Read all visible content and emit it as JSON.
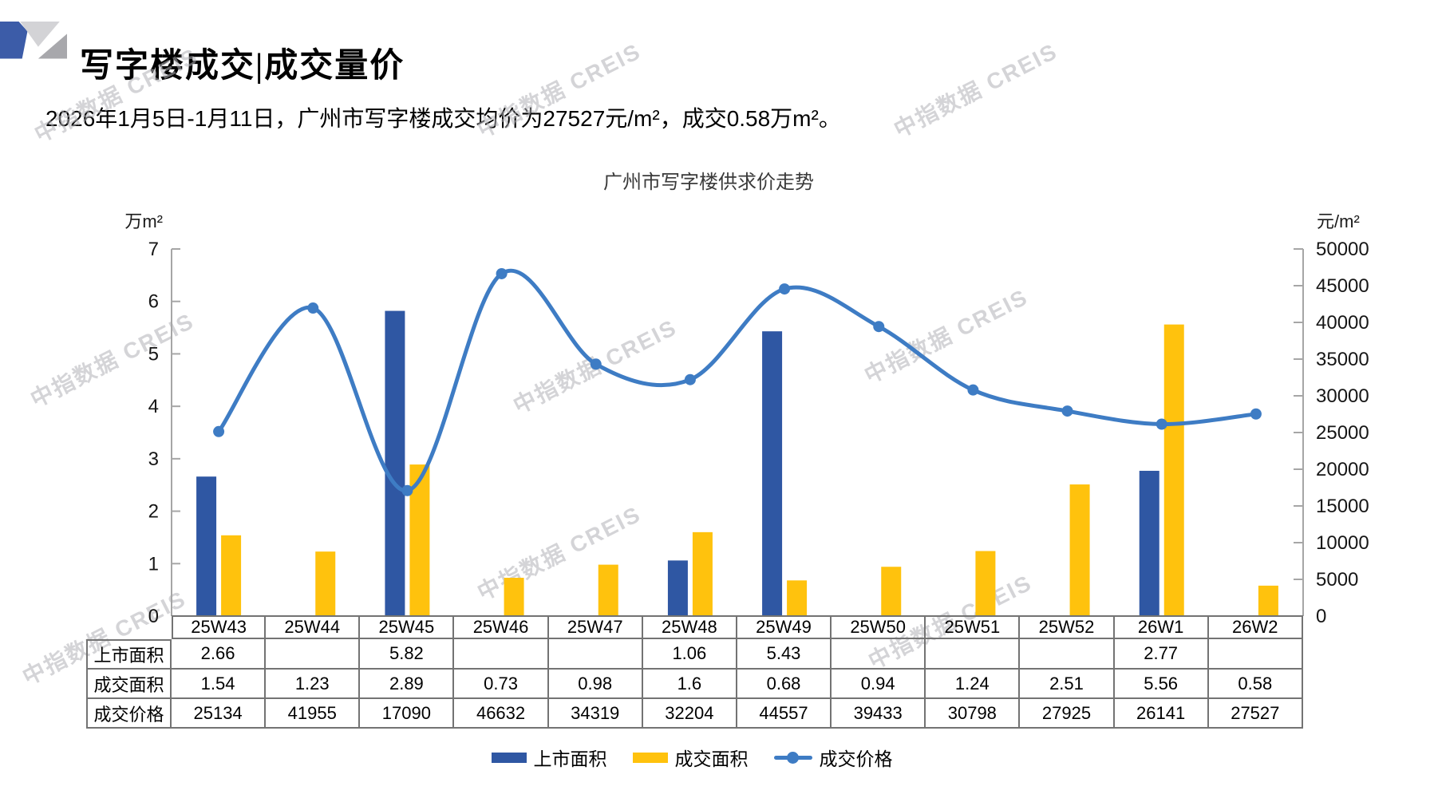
{
  "page": {
    "title": "写字楼成交|成交量价",
    "subtitle": "2026年1月5日-1月11日，广州市写字楼成交均价为27527元/m²，成交0.58万m²。",
    "watermark": "中指数据 CREIS"
  },
  "chart_data": {
    "type": "combo",
    "title": "广州市写字楼供求价走势",
    "categories": [
      "25W43",
      "25W44",
      "25W45",
      "25W46",
      "25W47",
      "25W48",
      "25W49",
      "25W50",
      "25W51",
      "25W52",
      "26W1",
      "26W2"
    ],
    "series": [
      {
        "name": "上市面积",
        "type": "bar",
        "axis": "left",
        "color": "#2F57A3",
        "values": [
          2.66,
          null,
          5.82,
          null,
          null,
          1.06,
          5.43,
          null,
          null,
          null,
          2.77,
          null
        ]
      },
      {
        "name": "成交面积",
        "type": "bar",
        "axis": "left",
        "color": "#FFC20D",
        "values": [
          1.54,
          1.23,
          2.89,
          0.73,
          0.98,
          1.6,
          0.68,
          0.94,
          1.24,
          2.51,
          5.56,
          0.58
        ]
      },
      {
        "name": "成交价格",
        "type": "line",
        "axis": "right",
        "color": "#3E7CC4",
        "values": [
          25134,
          41955,
          17090,
          46632,
          34319,
          32204,
          44557,
          39433,
          30798,
          27925,
          26141,
          27527
        ]
      }
    ],
    "left_axis": {
      "unit": "万m²",
      "min": 0,
      "max": 7,
      "tick_step": 1
    },
    "right_axis": {
      "unit": "元/m²",
      "min": 0,
      "max": 50000,
      "tick_step": 5000
    },
    "legend_position": "bottom",
    "grid": false,
    "axis_color": "#A6A6A6"
  },
  "table": {
    "rows": [
      {
        "label": "上市面积",
        "cells": [
          "2.66",
          "",
          "5.82",
          "",
          "",
          "1.06",
          "5.43",
          "",
          "",
          "",
          "2.77",
          ""
        ]
      },
      {
        "label": "成交面积",
        "cells": [
          "1.54",
          "1.23",
          "2.89",
          "0.73",
          "0.98",
          "1.6",
          "0.68",
          "0.94",
          "1.24",
          "2.51",
          "5.56",
          "0.58"
        ]
      },
      {
        "label": "成交价格",
        "cells": [
          "25134",
          "41955",
          "17090",
          "46632",
          "34319",
          "32204",
          "44557",
          "39433",
          "30798",
          "27925",
          "26141",
          "27527"
        ]
      }
    ]
  }
}
